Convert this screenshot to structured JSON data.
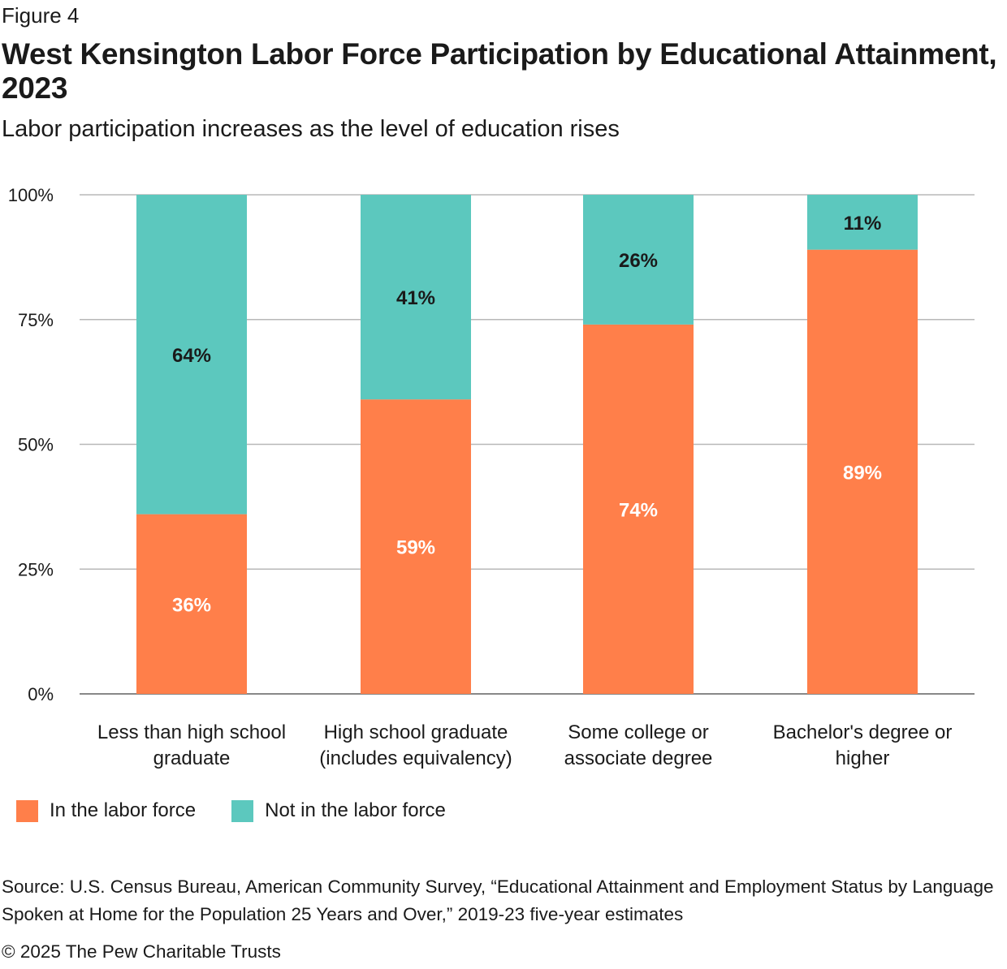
{
  "figure_label": "Figure 4",
  "title": "West Kensington Labor Force Participation by Educational Attainment, 2023",
  "subtitle": "Labor participation increases as the level of education rises",
  "colors": {
    "in_labor_force": "#ff7f4a",
    "not_in_labor_force": "#5cc8be",
    "grid": "#b8b8b8",
    "axis": "#888888"
  },
  "chart_data": {
    "type": "bar",
    "stacked": true,
    "categories": [
      [
        "Less than high school",
        "graduate"
      ],
      [
        "High school graduate",
        "(includes equivalency)"
      ],
      [
        "Some college or",
        "associate degree"
      ],
      [
        "Bachelor's degree or",
        "higher"
      ]
    ],
    "series": [
      {
        "name": "In the labor force",
        "values": [
          36,
          59,
          74,
          89
        ],
        "labels": [
          "36%",
          "59%",
          "74%",
          "89%"
        ],
        "color": "#ff7f4a",
        "label_color": "#ffffff"
      },
      {
        "name": "Not in the labor force",
        "values": [
          64,
          41,
          26,
          11
        ],
        "labels": [
          "64%",
          "41%",
          "26%",
          "11%"
        ],
        "color": "#5cc8be",
        "label_color": "#1a1a1a"
      }
    ],
    "ylim": [
      0,
      100
    ],
    "yticks": [
      0,
      25,
      50,
      75,
      100
    ],
    "ytick_labels": [
      "0%",
      "25%",
      "50%",
      "75%",
      "100%"
    ],
    "grid": true,
    "legend_position": "bottom-left"
  },
  "source": "Source: U.S. Census Bureau, American Community Survey, “Educational Attainment and Employment Status by Language Spoken at Home for the Population 25 Years and Over,” 2019-23 five-year estimates",
  "copyright": "© 2025 The Pew Charitable Trusts"
}
